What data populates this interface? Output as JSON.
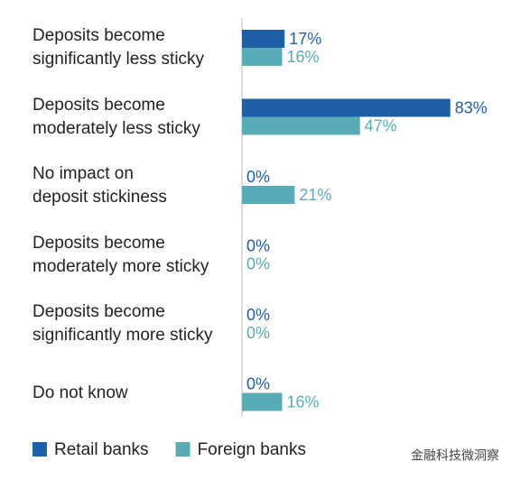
{
  "chart_data": {
    "type": "hbar",
    "categories": [
      "Deposits become\nsignificantly less sticky",
      "Deposits become\nmoderately less sticky",
      "No impact on\ndeposit stickiness",
      "Deposits become\nmoderately more sticky",
      "Deposits become\nsignificantly more sticky",
      "Do not know"
    ],
    "series": [
      {
        "name": "Retail banks",
        "color": "#1f5fa8",
        "values": [
          17,
          83,
          0,
          0,
          0,
          0
        ],
        "value_labels": [
          "17%",
          "83%",
          "0%",
          "0%",
          "0%",
          "0%"
        ]
      },
      {
        "name": "Foreign banks",
        "color": "#5aabb8",
        "values": [
          16,
          47,
          21,
          0,
          0,
          16
        ],
        "value_labels": [
          "16%",
          "47%",
          "21%",
          "0%",
          "0%",
          "16%"
        ]
      }
    ],
    "xlim": [
      0,
      100
    ],
    "legend": "bottom",
    "watermark": "金融科技微洞察"
  }
}
